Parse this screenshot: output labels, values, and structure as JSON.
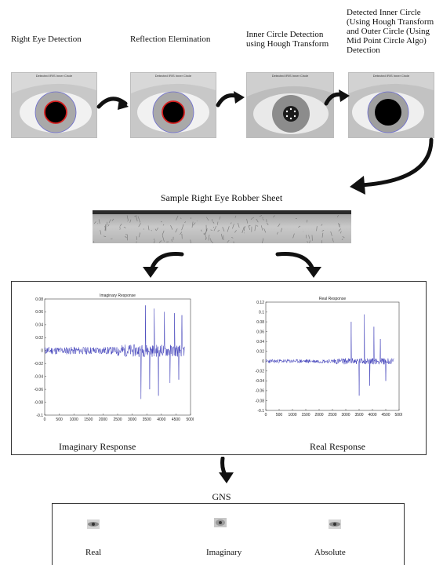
{
  "steps": [
    {
      "label": "Right Eye Detection",
      "image_title": "Detected IRIS Inner Circle",
      "pupil": "black-red-ring"
    },
    {
      "label": "Reflection Elemination",
      "image_title": "Detected IRIS Inner Circle",
      "pupil": "black-red-ring"
    },
    {
      "label": "Inner Circle Detection using Hough Transform",
      "image_title": "Detected IRIS Inner Circle",
      "pupil": "dark-with-dots"
    },
    {
      "label": "Detected Inner Circle (Using Hough Transform and Outer Circle (Using Mid Point Circle Algo) Detection",
      "image_title": "Detected IRIS Inner Circle",
      "pupil": "black"
    }
  ],
  "rubber_sheet_title": "Sample Right Eye Robber Sheet",
  "colors": {
    "signal": "#3a3ab8",
    "pupil_ring": "#d61e1e",
    "iris_circle": "#6a6ad0",
    "arrow": "#111111"
  },
  "chart_data": [
    {
      "type": "line",
      "title": "Imaginary Response",
      "xlim": [
        0,
        5000
      ],
      "ylim": [
        -0.1,
        0.08
      ],
      "xticks": [
        "0",
        "500",
        "1000",
        "1500",
        "2000",
        "2500",
        "3000",
        "3500",
        "4000",
        "4500",
        "5000"
      ],
      "yticks": [
        "0.08",
        "0.06",
        "0.04",
        "0.02",
        "0",
        "-0.02",
        "-0.04",
        "-0.06",
        "-0.08",
        "-0.1"
      ],
      "series": [
        {
          "color": "#3a3ab8",
          "baseline_amplitude": 0.006,
          "peaks": [
            [
              3300,
              -0.075
            ],
            [
              3450,
              0.07
            ],
            [
              3600,
              -0.06
            ],
            [
              3750,
              0.065
            ],
            [
              3900,
              -0.07
            ],
            [
              4100,
              0.06
            ],
            [
              4300,
              -0.05
            ],
            [
              4450,
              0.058
            ],
            [
              4600,
              -0.045
            ],
            [
              4700,
              0.055
            ]
          ]
        }
      ],
      "caption": "Imaginary Response"
    },
    {
      "type": "line",
      "title": "Real Response",
      "xlim": [
        0,
        5000
      ],
      "ylim": [
        -0.1,
        0.12
      ],
      "xticks": [
        "0",
        "500",
        "1000",
        "1500",
        "2000",
        "2500",
        "3000",
        "3500",
        "4000",
        "4500",
        "5000"
      ],
      "yticks": [
        "0.12",
        "0.1",
        "0.08",
        "0.06",
        "0.04",
        "0.02",
        "0",
        "-0.02",
        "-0.04",
        "-0.06",
        "-0.08",
        "-0.1"
      ],
      "series": [
        {
          "color": "#3a3ab8",
          "baseline_amplitude": 0.004,
          "peaks": [
            [
              3200,
              0.08
            ],
            [
              3500,
              -0.07
            ],
            [
              3700,
              0.095
            ],
            [
              3900,
              -0.05
            ],
            [
              4050,
              0.07
            ],
            [
              4300,
              0.045
            ],
            [
              4500,
              -0.04
            ]
          ]
        }
      ],
      "caption": "Real Response"
    }
  ],
  "gns_title": "GNS",
  "gns_items": [
    {
      "label": "Real"
    },
    {
      "label": "Imaginary"
    },
    {
      "label": "Absolute"
    }
  ]
}
